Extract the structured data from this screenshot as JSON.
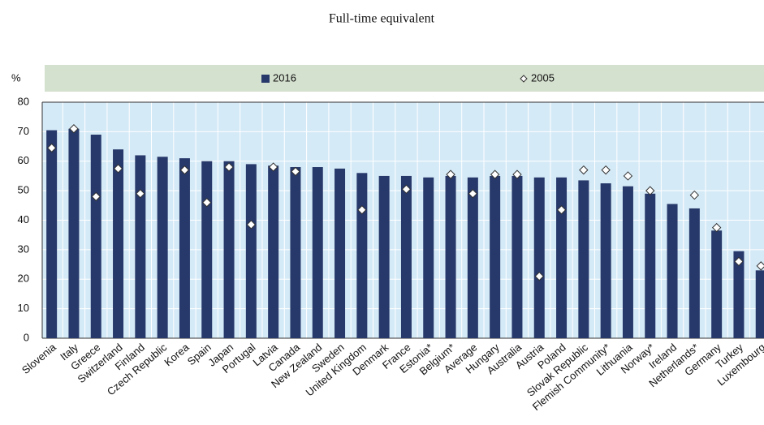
{
  "chart_data": {
    "type": "bar",
    "title": "Full-time equivalent",
    "y_label": "%",
    "categories": [
      "Slovenia",
      "Italy",
      "Greece",
      "Switzerland",
      "Finland",
      "Czech Republic",
      "Korea",
      "Spain",
      "Japan",
      "Portugal",
      "Latvia",
      "Canada",
      "New Zealand",
      "Sweden",
      "United Kingdom",
      "Denmark",
      "France",
      "Estonia*",
      "Belgium*",
      "Average",
      "Hungary",
      "Australia",
      "Austria",
      "Poland",
      "Slovak Republic",
      "Flemish Community*",
      "Lithuania",
      "Norway*",
      "Ireland",
      "Netherlands*",
      "Germany",
      "Turkey",
      "Luxembourg"
    ],
    "series": [
      {
        "name": "2016",
        "style": "bar",
        "color": "#27396a",
        "values": [
          70.5,
          71,
          69,
          64,
          62,
          61.5,
          61,
          60,
          60,
          59,
          58.5,
          58,
          58,
          57.5,
          56,
          55,
          55,
          54.5,
          55,
          54.5,
          55,
          55,
          54.5,
          54.5,
          53.5,
          52.5,
          51.5,
          49,
          45.5,
          44,
          36.5,
          29.5,
          23
        ]
      },
      {
        "name": "2005",
        "style": "diamond",
        "color": "#ffffff",
        "values": [
          64.5,
          71,
          48,
          57.5,
          49,
          null,
          57,
          46,
          58,
          38.5,
          58,
          56.5,
          null,
          null,
          43.5,
          null,
          50.5,
          null,
          55.5,
          49,
          55.5,
          55.5,
          21,
          43.5,
          57,
          57,
          55,
          50,
          null,
          48.5,
          37.5,
          26,
          24.5
        ]
      }
    ],
    "ylim": [
      0,
      80
    ],
    "yticks": [
      0,
      10,
      20,
      30,
      40,
      50,
      60,
      70,
      80
    ],
    "grid": true
  }
}
